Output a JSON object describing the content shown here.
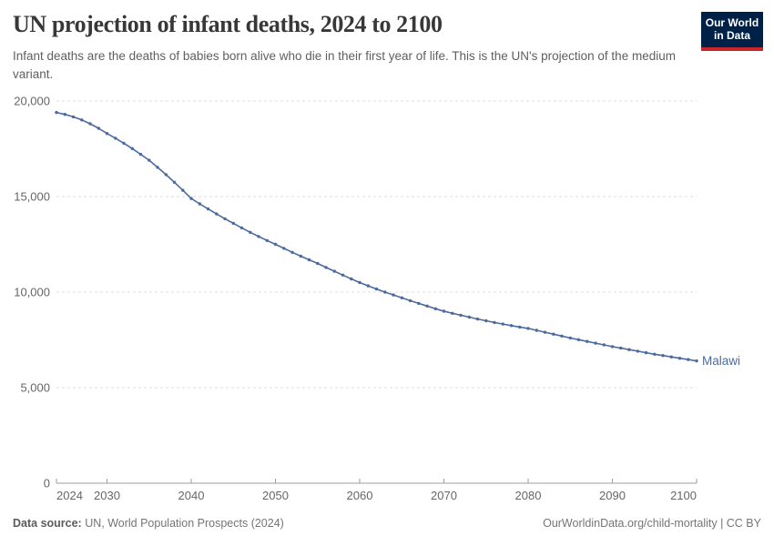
{
  "header": {
    "title": "UN projection of infant deaths, 2024 to 2100",
    "subtitle": "Infant deaths are the deaths of babies born alive who die in their first year of life. This is the UN's projection of the medium variant.",
    "logo": {
      "line1": "Our World",
      "line2": "in Data"
    }
  },
  "chart_data": {
    "type": "line",
    "title": "UN projection of infant deaths, 2024 to 2100",
    "xlabel": "",
    "ylabel": "",
    "xlim": [
      2024,
      2100
    ],
    "ylim": [
      0,
      20000
    ],
    "grid": "horizontal dashed gridlines",
    "legend_position": "end-of-line label",
    "end_label": "Malawi",
    "xticks": [
      {
        "v": 2024,
        "label": "2024"
      },
      {
        "v": 2030,
        "label": "2030"
      },
      {
        "v": 2040,
        "label": "2040"
      },
      {
        "v": 2050,
        "label": "2050"
      },
      {
        "v": 2060,
        "label": "2060"
      },
      {
        "v": 2070,
        "label": "2070"
      },
      {
        "v": 2080,
        "label": "2080"
      },
      {
        "v": 2090,
        "label": "2090"
      },
      {
        "v": 2100,
        "label": "2100"
      }
    ],
    "yticks": [
      {
        "v": 0,
        "label": "0"
      },
      {
        "v": 5000,
        "label": "5,000"
      },
      {
        "v": 10000,
        "label": "10,000"
      },
      {
        "v": 15000,
        "label": "15,000"
      },
      {
        "v": 20000,
        "label": "20,000"
      }
    ],
    "x": [
      2024,
      2025,
      2026,
      2027,
      2028,
      2029,
      2030,
      2031,
      2032,
      2033,
      2034,
      2035,
      2036,
      2037,
      2038,
      2039,
      2040,
      2041,
      2042,
      2043,
      2044,
      2045,
      2046,
      2047,
      2048,
      2049,
      2050,
      2051,
      2052,
      2053,
      2054,
      2055,
      2056,
      2057,
      2058,
      2059,
      2060,
      2061,
      2062,
      2063,
      2064,
      2065,
      2066,
      2067,
      2068,
      2069,
      2070,
      2071,
      2072,
      2073,
      2074,
      2075,
      2076,
      2077,
      2078,
      2079,
      2080,
      2081,
      2082,
      2083,
      2084,
      2085,
      2086,
      2087,
      2088,
      2089,
      2090,
      2091,
      2092,
      2093,
      2094,
      2095,
      2096,
      2097,
      2098,
      2099,
      2100
    ],
    "series": [
      {
        "name": "Malawi",
        "values": [
          19400,
          19300,
          19170,
          19010,
          18810,
          18570,
          18300,
          18050,
          17790,
          17510,
          17210,
          16900,
          16530,
          16150,
          15750,
          15330,
          14900,
          14620,
          14350,
          14090,
          13840,
          13600,
          13360,
          13130,
          12910,
          12700,
          12500,
          12290,
          12080,
          11880,
          11690,
          11500,
          11290,
          11090,
          10890,
          10690,
          10500,
          10330,
          10160,
          10000,
          9850,
          9700,
          9550,
          9410,
          9270,
          9130,
          9000,
          8890,
          8790,
          8690,
          8590,
          8500,
          8410,
          8330,
          8250,
          8170,
          8100,
          8000,
          7900,
          7800,
          7700,
          7600,
          7510,
          7420,
          7330,
          7240,
          7150,
          7070,
          6990,
          6910,
          6830,
          6750,
          6680,
          6610,
          6540,
          6470,
          6400
        ]
      }
    ]
  },
  "footer": {
    "source_label": "Data source:",
    "source_text": " UN, World Population Prospects (2024)",
    "credit": "OurWorldinData.org/child-mortality | CC BY"
  },
  "colors": {
    "line": "#4c6a9c",
    "end_label": "#4c6a9c",
    "grid": "#dcdcdc",
    "axis": "#9e9e9e",
    "tick_text": "#666666",
    "logo_bg": "#002147",
    "logo_stripe": "#c9262c"
  }
}
